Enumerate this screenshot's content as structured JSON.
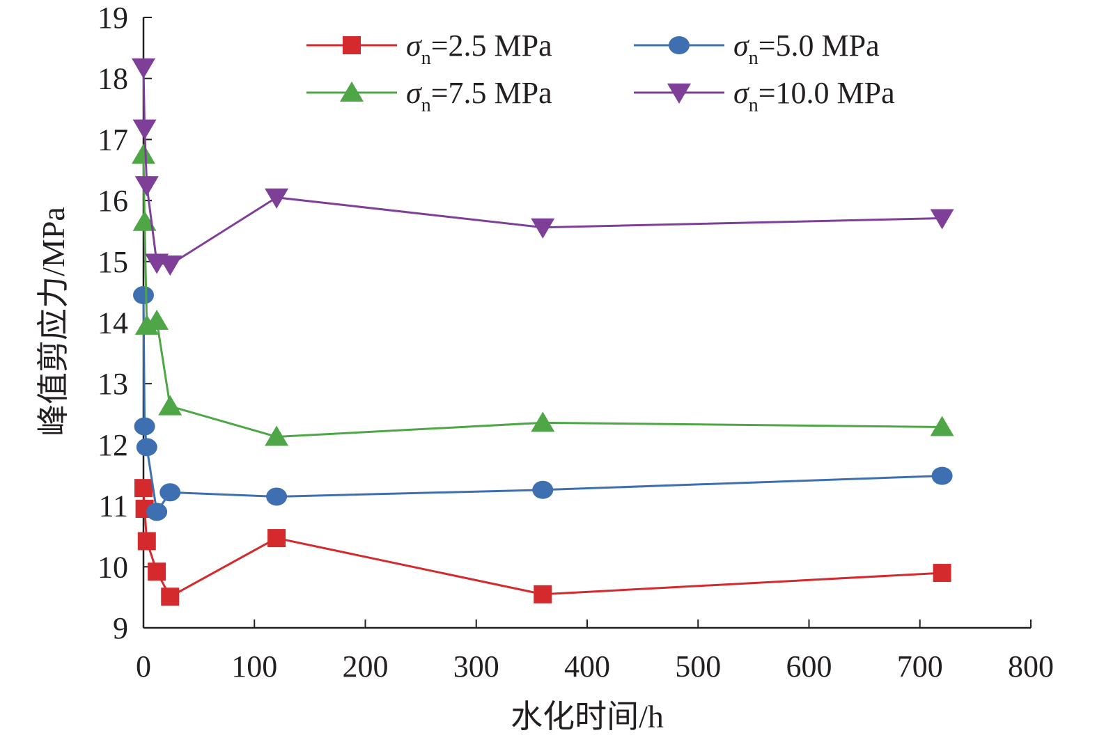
{
  "chart_data": {
    "type": "line",
    "xlabel": "水化时间/h",
    "ylabel": "峰值剪应力/MPa",
    "xlim": [
      0,
      800
    ],
    "ylim": [
      9,
      19
    ],
    "xticks": [
      "0",
      "100",
      "200",
      "300",
      "400",
      "500",
      "600",
      "700",
      "800"
    ],
    "yticks": [
      "9",
      "10",
      "11",
      "12",
      "13",
      "14",
      "15",
      "16",
      "17",
      "18",
      "19"
    ],
    "grid": false,
    "legend_position": "top",
    "series": [
      {
        "name": "σn=2.5 MPa",
        "legend_symbol": "σ",
        "legend_subscript": "n",
        "legend_value": "=2.5 MPa",
        "marker": "square",
        "color": "#d42a2e",
        "x": [
          0,
          1,
          3,
          12,
          24,
          120,
          360,
          720
        ],
        "y": [
          11.29,
          10.95,
          10.42,
          9.92,
          9.51,
          10.47,
          9.55,
          9.9
        ]
      },
      {
        "name": "σn=5.0 MPa",
        "legend_symbol": "σ",
        "legend_subscript": "n",
        "legend_value": "=5.0 MPa",
        "marker": "circle",
        "color": "#3e6fb0",
        "x": [
          0,
          1,
          3,
          12,
          24,
          120,
          360,
          720
        ],
        "y": [
          14.45,
          12.3,
          11.96,
          10.9,
          11.22,
          11.15,
          11.26,
          11.49
        ]
      },
      {
        "name": "σn=7.5 MPa",
        "legend_symbol": "σ",
        "legend_subscript": "n",
        "legend_value": "=7.5 MPa",
        "marker": "triangle-up",
        "color": "#4ea646",
        "x": [
          0,
          1,
          3,
          12,
          24,
          120,
          360,
          720
        ],
        "y": [
          16.75,
          15.65,
          13.95,
          14.03,
          12.63,
          12.13,
          12.36,
          12.29
        ]
      },
      {
        "name": "σn=10.0 MPa",
        "legend_symbol": "σ",
        "legend_subscript": "n",
        "legend_value": "=10.0 MPa",
        "marker": "triangle-down",
        "color": "#7e3f98",
        "x": [
          0,
          1,
          3,
          12,
          24,
          120,
          360,
          720
        ],
        "y": [
          18.18,
          17.18,
          16.25,
          14.98,
          14.95,
          16.05,
          15.56,
          15.71
        ]
      }
    ]
  }
}
